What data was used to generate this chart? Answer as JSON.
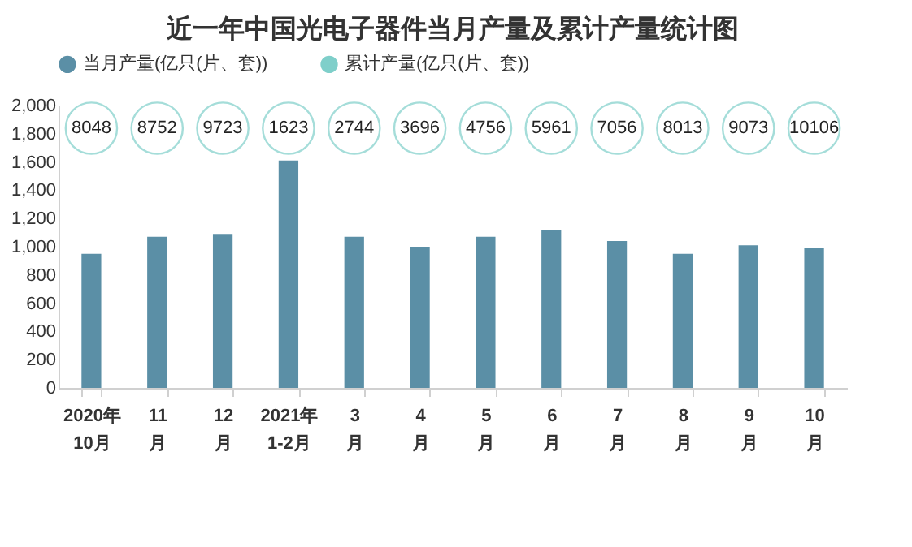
{
  "chart_data": {
    "type": "bar",
    "title": "近一年中国光电子器件当月产量及累计产量统计图",
    "categories": [
      "2020年\n10月",
      "11\n月",
      "12\n月",
      "2021年\n1-2月",
      "3\n月",
      "4\n月",
      "5\n月",
      "6\n月",
      "7\n月",
      "8\n月",
      "9\n月",
      "10\n月"
    ],
    "series": [
      {
        "name": "当月产量(亿只(片、套))",
        "color": "#5b8fa6",
        "values": [
          950,
          1070,
          1090,
          1610,
          1070,
          1000,
          1070,
          1120,
          1040,
          950,
          1010,
          990
        ]
      },
      {
        "name": "累计产量(亿只(片、套))",
        "type": "scatter",
        "color": "#7fcfca",
        "values": [
          null,
          null,
          null,
          null,
          null,
          null,
          null,
          null,
          null,
          null,
          null,
          null
        ]
      }
    ],
    "annotations": [
      {
        "text": "8048",
        "x": "2020年\n10月"
      },
      {
        "text": "8752",
        "x": "11\n月"
      },
      {
        "text": "9723",
        "x": "12\n月"
      },
      {
        "text": "1623",
        "x": "2021年\n1-2月"
      },
      {
        "text": "2744",
        "x": "3\n月"
      },
      {
        "text": "3696",
        "x": "4\n月"
      },
      {
        "text": "4756",
        "x": "5\n月"
      },
      {
        "text": "5961",
        "x": "6\n月"
      },
      {
        "text": "7056",
        "x": "7\n月"
      },
      {
        "text": "8013",
        "x": "8\n月"
      },
      {
        "text": "9073",
        "x": "9\n月"
      },
      {
        "text": "10106",
        "x": "10\n月"
      }
    ],
    "ylim": [
      0,
      2000
    ],
    "yticks": [
      0,
      200,
      400,
      600,
      800,
      {
        "value": 1000,
        "label": "1,000"
      },
      {
        "value": 1200,
        "label": "1,200"
      },
      {
        "value": 1400,
        "label": "1,400"
      },
      {
        "value": 1600,
        "label": "1,600"
      },
      {
        "value": 1800,
        "label": "1,800"
      },
      {
        "value": 2000,
        "label": "2,000"
      }
    ],
    "legend": "top",
    "grid": false
  }
}
